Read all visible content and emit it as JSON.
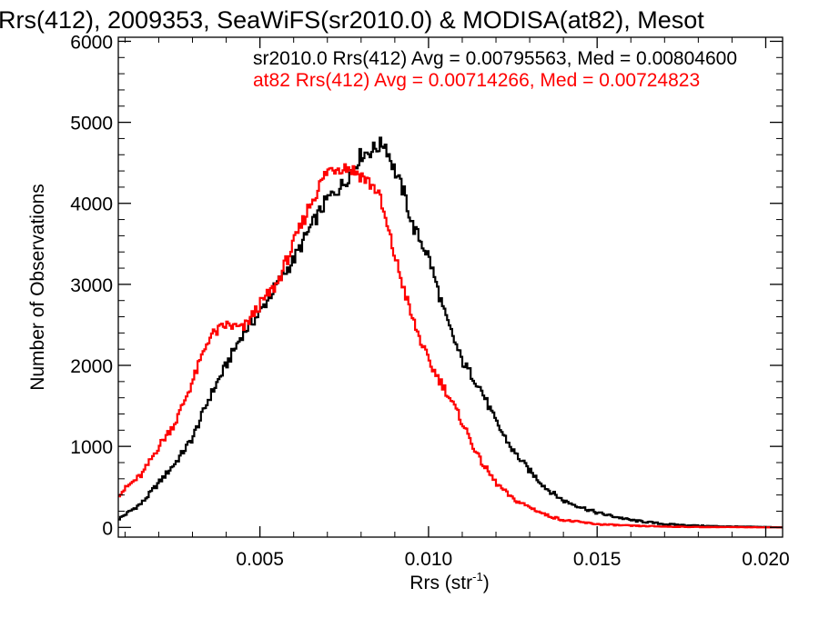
{
  "chart_data": {
    "type": "line",
    "title": "Rrs(412), 2009353, SeaWiFS(sr2010.0) & MODISA(at82), Mesot",
    "xlabel": "Rrs (str",
    "xlabel_sup": "-1",
    "xlabel_tail": ")",
    "ylabel": "Number of Observations",
    "xlim": [
      0.0008,
      0.0205
    ],
    "ylim": [
      -120,
      6050
    ],
    "x_ticks": [
      0.005,
      0.01,
      0.015,
      0.02
    ],
    "x_tick_labels": [
      "0.005",
      "0.010",
      "0.015",
      "0.020"
    ],
    "y_ticks": [
      0,
      1000,
      2000,
      3000,
      4000,
      5000,
      6000
    ],
    "y_tick_labels": [
      "0",
      "1000",
      "2000",
      "3000",
      "4000",
      "5000",
      "6000"
    ],
    "grid": false,
    "legend": "top-right",
    "series": [
      {
        "name": "sr2010.0 Rrs(412) Avg = 0.00795563, Med = 0.00804600",
        "color": "#000000",
        "x": [
          0.0008,
          0.0015,
          0.002,
          0.0025,
          0.003,
          0.0035,
          0.004,
          0.0045,
          0.005,
          0.0055,
          0.006,
          0.0065,
          0.007,
          0.0075,
          0.008,
          0.0083,
          0.0085,
          0.0087,
          0.009,
          0.0093,
          0.0095,
          0.01,
          0.0105,
          0.011,
          0.0115,
          0.012,
          0.0125,
          0.013,
          0.0135,
          0.014,
          0.015,
          0.016,
          0.017,
          0.018,
          0.019,
          0.02,
          0.0205
        ],
        "values": [
          100,
          300,
          550,
          800,
          1100,
          1600,
          2000,
          2400,
          2650,
          3000,
          3300,
          3700,
          4050,
          4250,
          4600,
          4650,
          4700,
          4750,
          4400,
          4100,
          3750,
          3350,
          2600,
          2050,
          1750,
          1300,
          950,
          700,
          480,
          330,
          180,
          90,
          40,
          20,
          10,
          5,
          0
        ]
      },
      {
        "name": "at82 Rrs(412) Avg = 0.00714266, Med = 0.00724823",
        "color": "#ff0000",
        "x": [
          0.0008,
          0.0012,
          0.0015,
          0.002,
          0.0025,
          0.003,
          0.0035,
          0.004,
          0.0045,
          0.005,
          0.0055,
          0.006,
          0.0065,
          0.007,
          0.0073,
          0.0076,
          0.008,
          0.0085,
          0.009,
          0.0095,
          0.01,
          0.0105,
          0.011,
          0.0115,
          0.012,
          0.0125,
          0.013,
          0.0135,
          0.014,
          0.015,
          0.016,
          0.017,
          0.018,
          0.019,
          0.02,
          0.0205
        ],
        "values": [
          400,
          550,
          650,
          1000,
          1300,
          1800,
          2350,
          2500,
          2450,
          2750,
          3000,
          3500,
          4000,
          4400,
          4450,
          4450,
          4350,
          4150,
          3350,
          2600,
          2050,
          1700,
          1300,
          850,
          550,
          350,
          250,
          150,
          90,
          40,
          20,
          10,
          5,
          3,
          1,
          0
        ]
      }
    ]
  }
}
